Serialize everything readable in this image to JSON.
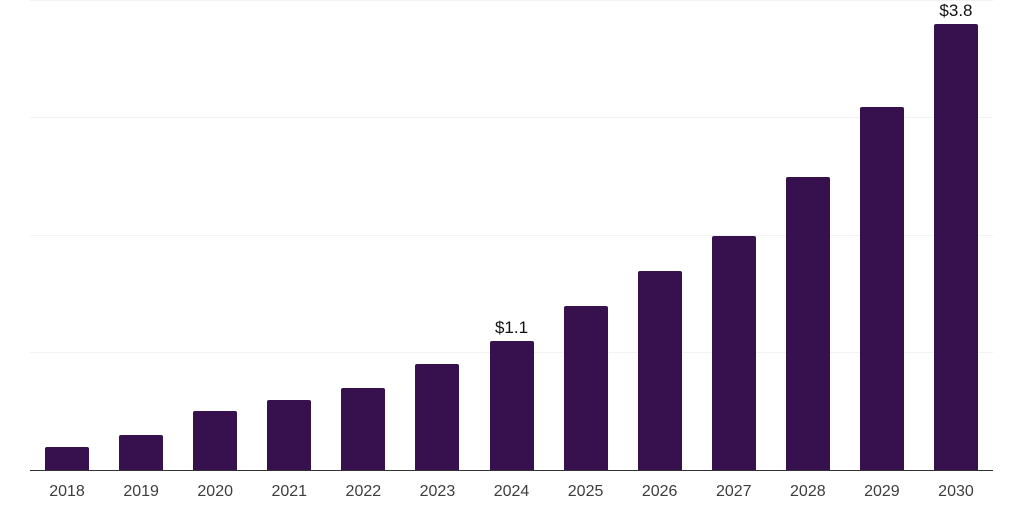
{
  "chart_data": {
    "type": "bar",
    "title": "",
    "xlabel": "",
    "ylabel": "",
    "categories": [
      "2018",
      "2019",
      "2020",
      "2021",
      "2022",
      "2023",
      "2024",
      "2025",
      "2026",
      "2027",
      "2028",
      "2029",
      "2030"
    ],
    "values": [
      0.2,
      0.3,
      0.5,
      0.6,
      0.7,
      0.9,
      1.1,
      1.4,
      1.7,
      2.0,
      2.5,
      3.1,
      3.8
    ],
    "data_labels": [
      {
        "category": "2024",
        "text": "$1.1"
      },
      {
        "category": "2030",
        "text": "$3.8"
      }
    ],
    "ylim": [
      0,
      4
    ],
    "gridline_values": [
      1,
      2,
      3,
      4
    ],
    "grid": "horizontal-only",
    "legend": "none",
    "y_tick_labels": "none",
    "colors": {
      "bar": "#37114D",
      "axis_line": "#333333",
      "gridline": "#f2f2f2",
      "tick_label": "#3d3d3d",
      "data_label": "#111111",
      "background": "#ffffff"
    }
  }
}
